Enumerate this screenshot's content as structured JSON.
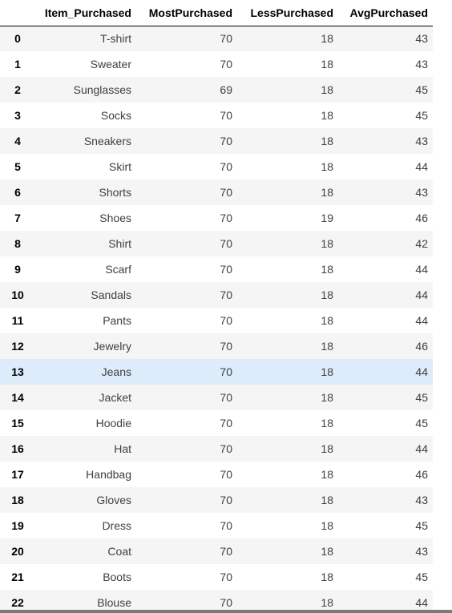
{
  "table": {
    "columns": [
      "",
      "Item_Purchased",
      "MostPurchased",
      "LessPurchased",
      "AvgPurchased"
    ],
    "highlighted_row": "13",
    "rows": [
      {
        "index": "0",
        "item": "T-shirt",
        "most": "70",
        "less": "18",
        "avg": "43"
      },
      {
        "index": "1",
        "item": "Sweater",
        "most": "70",
        "less": "18",
        "avg": "43"
      },
      {
        "index": "2",
        "item": "Sunglasses",
        "most": "69",
        "less": "18",
        "avg": "45"
      },
      {
        "index": "3",
        "item": "Socks",
        "most": "70",
        "less": "18",
        "avg": "45"
      },
      {
        "index": "4",
        "item": "Sneakers",
        "most": "70",
        "less": "18",
        "avg": "43"
      },
      {
        "index": "5",
        "item": "Skirt",
        "most": "70",
        "less": "18",
        "avg": "44"
      },
      {
        "index": "6",
        "item": "Shorts",
        "most": "70",
        "less": "18",
        "avg": "43"
      },
      {
        "index": "7",
        "item": "Shoes",
        "most": "70",
        "less": "19",
        "avg": "46"
      },
      {
        "index": "8",
        "item": "Shirt",
        "most": "70",
        "less": "18",
        "avg": "42"
      },
      {
        "index": "9",
        "item": "Scarf",
        "most": "70",
        "less": "18",
        "avg": "44"
      },
      {
        "index": "10",
        "item": "Sandals",
        "most": "70",
        "less": "18",
        "avg": "44"
      },
      {
        "index": "11",
        "item": "Pants",
        "most": "70",
        "less": "18",
        "avg": "44"
      },
      {
        "index": "12",
        "item": "Jewelry",
        "most": "70",
        "less": "18",
        "avg": "46"
      },
      {
        "index": "13",
        "item": "Jeans",
        "most": "70",
        "less": "18",
        "avg": "44"
      },
      {
        "index": "14",
        "item": "Jacket",
        "most": "70",
        "less": "18",
        "avg": "45"
      },
      {
        "index": "15",
        "item": "Hoodie",
        "most": "70",
        "less": "18",
        "avg": "45"
      },
      {
        "index": "16",
        "item": "Hat",
        "most": "70",
        "less": "18",
        "avg": "44"
      },
      {
        "index": "17",
        "item": "Handbag",
        "most": "70",
        "less": "18",
        "avg": "46"
      },
      {
        "index": "18",
        "item": "Gloves",
        "most": "70",
        "less": "18",
        "avg": "43"
      },
      {
        "index": "19",
        "item": "Dress",
        "most": "70",
        "less": "18",
        "avg": "45"
      },
      {
        "index": "20",
        "item": "Coat",
        "most": "70",
        "less": "18",
        "avg": "43"
      },
      {
        "index": "21",
        "item": "Boots",
        "most": "70",
        "less": "18",
        "avg": "45"
      },
      {
        "index": "22",
        "item": "Blouse",
        "most": "70",
        "less": "18",
        "avg": "44"
      }
    ]
  },
  "colors": {
    "row_stripe": "#f5f5f5",
    "row_hover": "#dcecfa",
    "header_border": "#000000"
  }
}
